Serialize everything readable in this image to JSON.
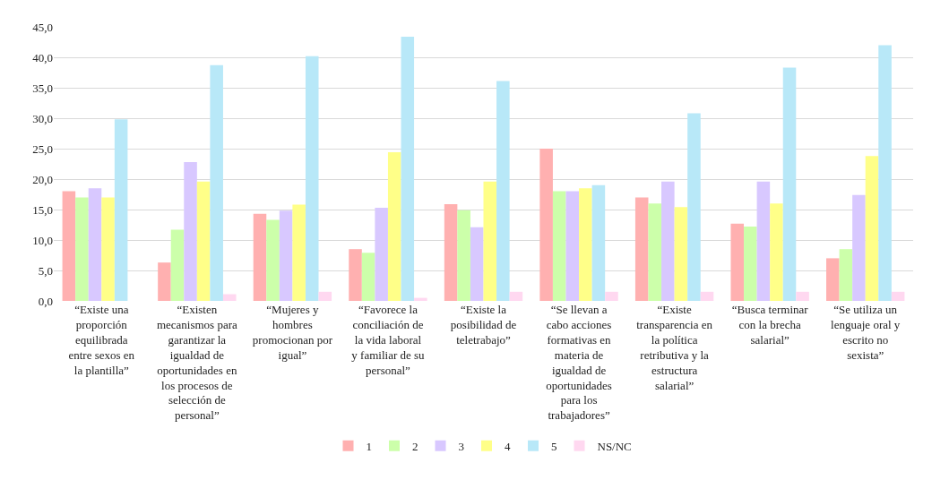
{
  "chart_data": {
    "type": "bar",
    "categories": [
      "“Existe una proporción equilibrada entre sexos en la plantilla”",
      "“Existen mecanismos para garantizar la igualdad de oportunidades en los procesos de selección de personal”",
      "“Mujeres y hombres promocionan por igual”",
      "“Favorece la conciliación de la vida laboral y familiar de su personal”",
      "“Existe la posibilidad de teletrabajo”",
      "“Se llevan a cabo acciones formativas en materia de igualdad de oportunidades para los trabajadores”",
      "“Existe transparencia en la política retributiva y la estructura salarial”",
      "“Busca terminar con la brecha salarial”",
      "“Se utiliza un lenguaje oral y escrito no sexista”"
    ],
    "series": [
      {
        "name": "1",
        "color": "#ffb0b0",
        "values": [
          18.0,
          6.3,
          14.3,
          8.5,
          15.9,
          25.0,
          17.0,
          12.7,
          7.0
        ]
      },
      {
        "name": "2",
        "color": "#ccffaa",
        "values": [
          17.0,
          11.7,
          13.3,
          7.9,
          14.9,
          18.0,
          16.0,
          12.2,
          8.5
        ]
      },
      {
        "name": "3",
        "color": "#d8c8ff",
        "values": [
          18.5,
          22.8,
          14.8,
          15.3,
          12.1,
          18.0,
          19.6,
          19.6,
          17.4
        ]
      },
      {
        "name": "4",
        "color": "#ffff88",
        "values": [
          17.0,
          19.6,
          15.8,
          24.4,
          19.6,
          18.5,
          15.4,
          16.0,
          23.8
        ]
      },
      {
        "name": "5",
        "color": "#b8e8f8",
        "values": [
          29.8,
          38.7,
          40.2,
          43.4,
          36.1,
          19.0,
          30.8,
          38.3,
          42.0
        ]
      },
      {
        "name": "NS/NC",
        "color": "#ffd8f0",
        "values": [
          0.0,
          1.1,
          1.5,
          0.5,
          1.5,
          1.5,
          1.5,
          1.5,
          1.5
        ]
      }
    ],
    "ylim": [
      0,
      45
    ],
    "yticks": [
      {
        "value": 0,
        "label": "0,0"
      },
      {
        "value": 5,
        "label": "5,0"
      },
      {
        "value": 10,
        "label": "10,0"
      },
      {
        "value": 15,
        "label": "15,0"
      },
      {
        "value": 20,
        "label": "20,0"
      },
      {
        "value": 25,
        "label": "25,0"
      },
      {
        "value": 30,
        "label": "30,0"
      },
      {
        "value": 35,
        "label": "35,0"
      },
      {
        "value": 40,
        "label": "40,0"
      },
      {
        "value": 45,
        "label": "45,0"
      }
    ],
    "grid": "y",
    "legend": "bottom"
  }
}
